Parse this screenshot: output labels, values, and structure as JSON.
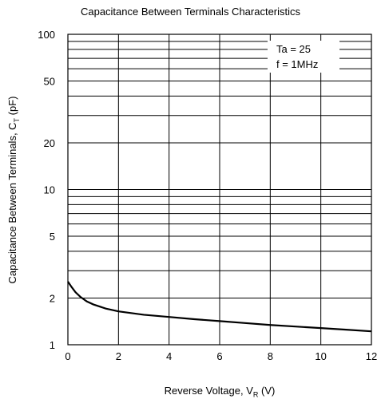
{
  "chart_data": {
    "type": "line",
    "title": "Capacitance Between Terminals Characteristics",
    "xlabel": {
      "main": "Reverse Voltage, V",
      "sub": "R",
      "unit": "(V)"
    },
    "ylabel": {
      "main": "Capacitance Between Terminals, C",
      "sub": "T",
      "unit": "(pF)"
    },
    "xlim": [
      0,
      12
    ],
    "ylim": [
      1,
      100
    ],
    "yscale": "log",
    "grid": true,
    "x_ticks": [
      {
        "value": 0,
        "label": "0"
      },
      {
        "value": 2,
        "label": "2"
      },
      {
        "value": 4,
        "label": "4"
      },
      {
        "value": 6,
        "label": "6"
      },
      {
        "value": 8,
        "label": "8"
      },
      {
        "value": 10,
        "label": "10"
      },
      {
        "value": 12,
        "label": "12"
      }
    ],
    "y_ticks": [
      {
        "value": 1,
        "label": "1"
      },
      {
        "value": 2,
        "label": "2"
      },
      {
        "value": 5,
        "label": "5"
      },
      {
        "value": 10,
        "label": "10"
      },
      {
        "value": 20,
        "label": "20"
      },
      {
        "value": 50,
        "label": "50"
      },
      {
        "value": 100,
        "label": "100"
      }
    ],
    "annotations": [
      "Ta = 25",
      "f = 1MHz"
    ],
    "series": [
      {
        "x": [
          0,
          0.15,
          0.3,
          0.5,
          0.75,
          1.0,
          1.5,
          2.0,
          3.0,
          4.0,
          5.0,
          6.0,
          7.0,
          8.0,
          9.0,
          10.0,
          11.0,
          12.0
        ],
        "y": [
          2.55,
          2.35,
          2.18,
          2.03,
          1.9,
          1.82,
          1.71,
          1.64,
          1.56,
          1.51,
          1.46,
          1.42,
          1.38,
          1.34,
          1.31,
          1.28,
          1.25,
          1.22
        ]
      }
    ],
    "line_color": "#000000"
  }
}
